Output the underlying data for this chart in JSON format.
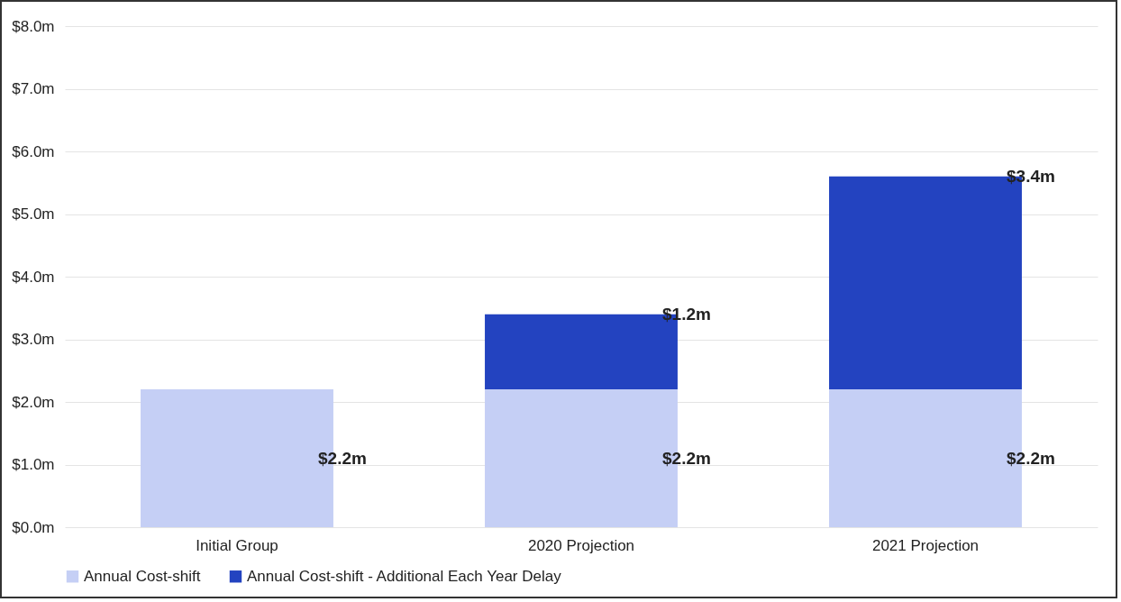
{
  "chart_data": {
    "type": "bar",
    "stacked": true,
    "categories": [
      "Initial Group",
      "2020 Projection",
      "2021 Projection"
    ],
    "series": [
      {
        "name": "Annual Cost-shift",
        "color": "#c5cff5",
        "values": [
          2.2,
          2.2,
          2.2
        ],
        "value_labels": [
          "$2.2m",
          "$2.2m",
          "$2.2m"
        ]
      },
      {
        "name": "Annual Cost-shift - Additional Each Year Delay",
        "color": "#2343c0",
        "values": [
          null,
          1.2,
          3.4
        ],
        "value_labels": [
          null,
          "$1.2m",
          "$3.4m"
        ]
      }
    ],
    "ylim": [
      0,
      8
    ],
    "yticks": [
      {
        "value": 0,
        "label": "$0.0m"
      },
      {
        "value": 1,
        "label": "$1.0m"
      },
      {
        "value": 2,
        "label": "$2.0m"
      },
      {
        "value": 3,
        "label": "$3.0m"
      },
      {
        "value": 4,
        "label": "$4.0m"
      },
      {
        "value": 5,
        "label": "$5.0m"
      },
      {
        "value": 6,
        "label": "$6.0m"
      },
      {
        "value": 7,
        "label": "$7.0m"
      },
      {
        "value": 8,
        "label": "$8.0m"
      }
    ],
    "grid": "y",
    "legend": "bottom"
  }
}
